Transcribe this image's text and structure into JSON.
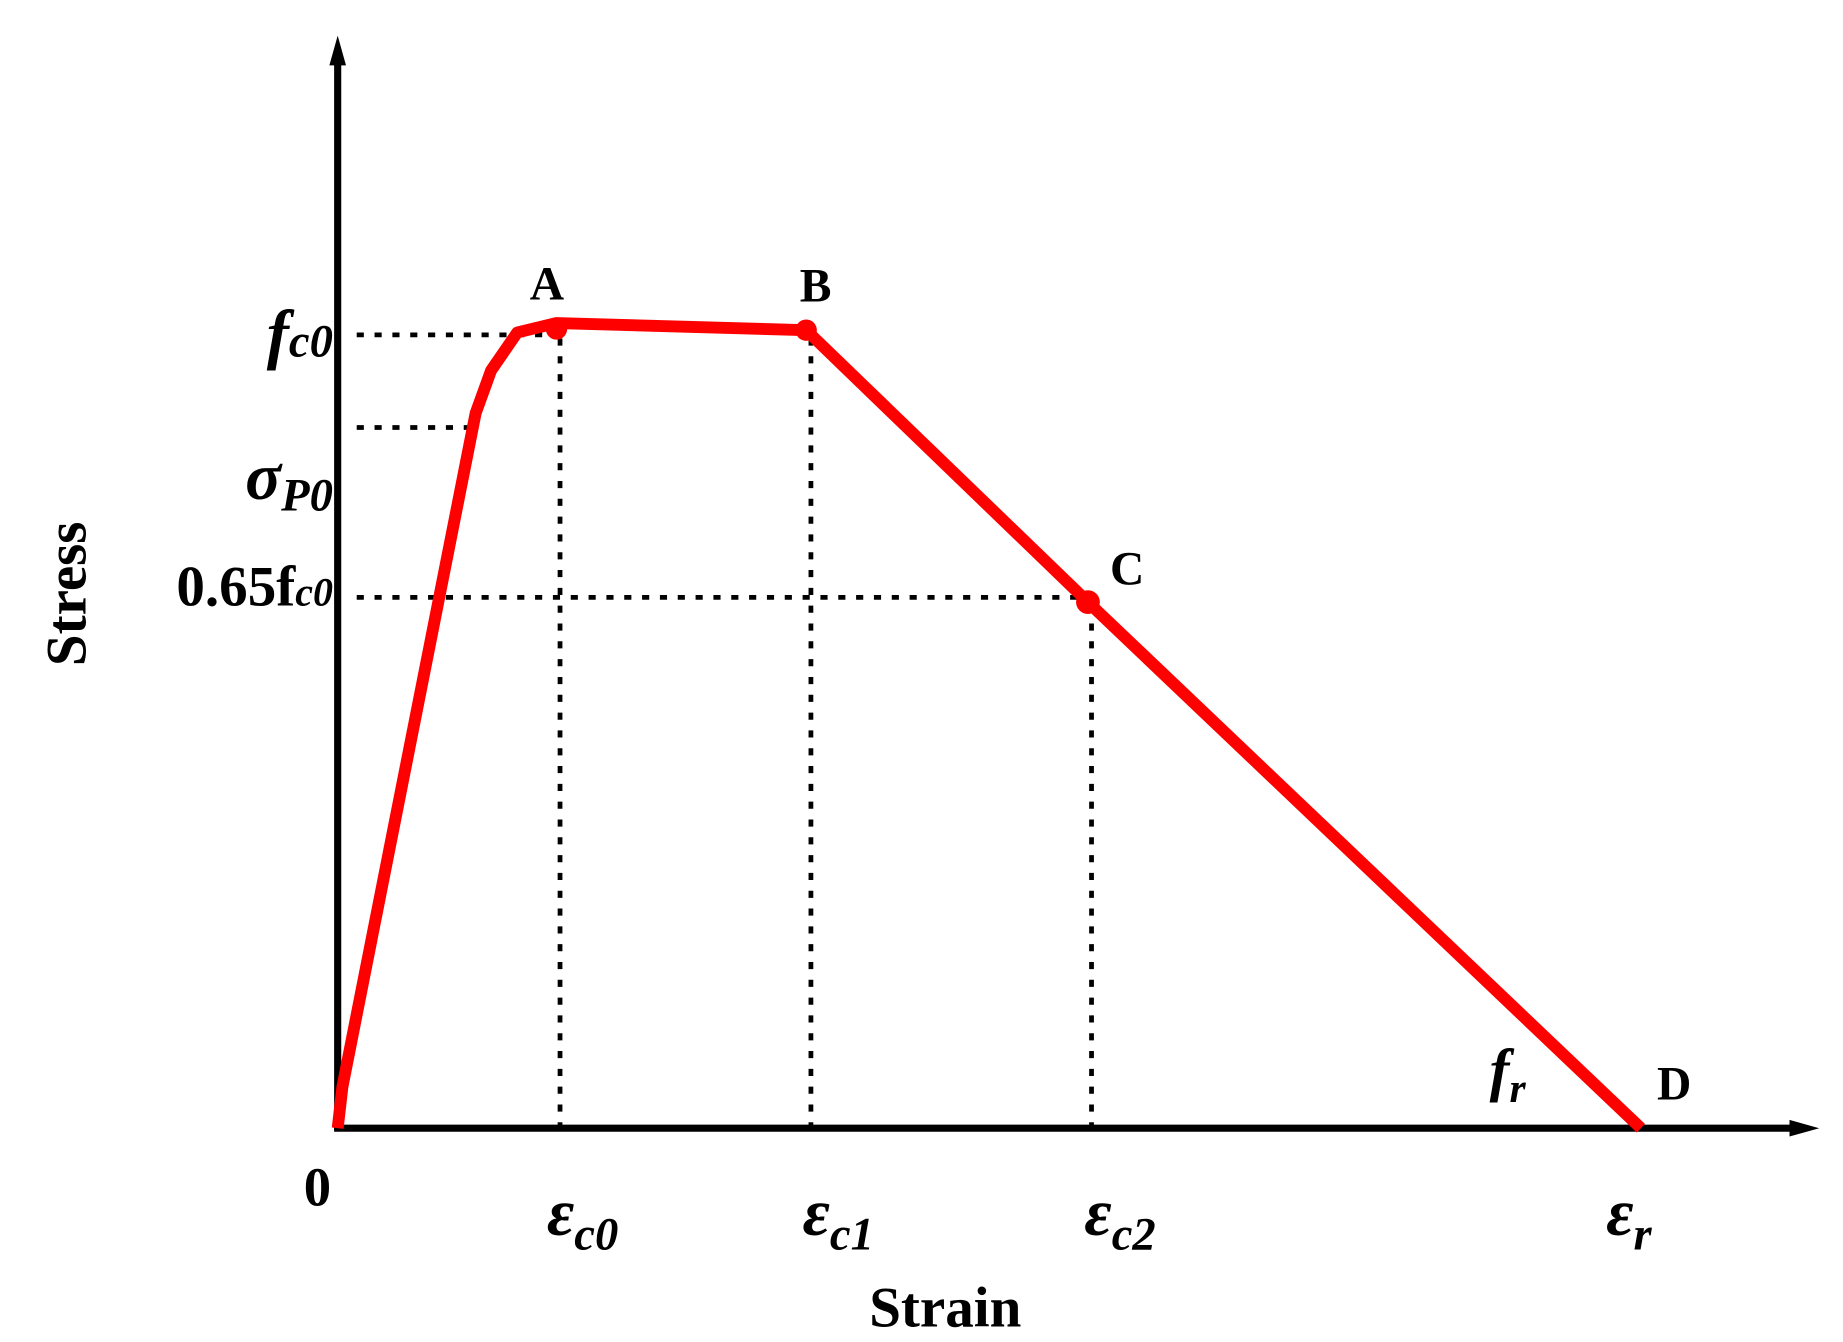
{
  "axes": {
    "x_label": "Strain",
    "y_label": "Stress",
    "origin": "0"
  },
  "y_labels": [
    {
      "symbol": "f",
      "subscript": "c0"
    },
    {
      "symbol": "σ",
      "subscript": "P0"
    },
    {
      "symbol": "0.65f",
      "subscript": "c0"
    }
  ],
  "x_labels": [
    {
      "symbol": "ε",
      "subscript": "c0"
    },
    {
      "symbol": "ε",
      "subscript": "c1"
    },
    {
      "symbol": "ε",
      "subscript": "c2"
    },
    {
      "symbol": "ε",
      "subscript": "r"
    }
  ],
  "points": [
    "A",
    "B",
    "C",
    "D"
  ],
  "curve_label": {
    "symbol": "f",
    "subscript": "r"
  }
}
